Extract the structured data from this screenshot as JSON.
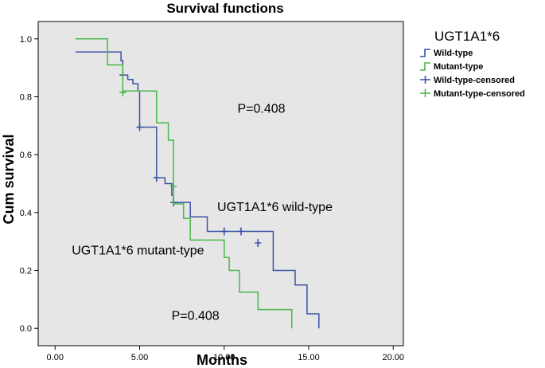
{
  "chart_data": {
    "type": "line",
    "title": "Survival functions",
    "xlabel": "Months",
    "ylabel": "Cum survival",
    "xlim": [
      -1,
      20.6
    ],
    "ylim": [
      -0.06,
      1.06
    ],
    "x_ticks": [
      0,
      5,
      10,
      15,
      20
    ],
    "x_tick_labels": [
      "0.00",
      "5.00",
      "10.00",
      "15.00",
      "20.00"
    ],
    "y_ticks": [
      0,
      0.2,
      0.4,
      0.6,
      0.8,
      1.0
    ],
    "y_tick_labels": [
      "0.0",
      "0.2",
      "0.4",
      "0.6",
      "0.8",
      "1.0"
    ],
    "legend": {
      "title": "UGT1A1*6",
      "placement": "right",
      "entries": [
        {
          "label": "Wild-type",
          "kind": "step",
          "color": "#3a53a4"
        },
        {
          "label": "Mutant-type",
          "kind": "step",
          "color": "#49b84b"
        },
        {
          "label": "Wild-type-censored",
          "kind": "censor",
          "color": "#3a53a4"
        },
        {
          "label": "Mutant-type-censored",
          "kind": "censor",
          "color": "#49b84b"
        }
      ]
    },
    "series": [
      {
        "name": "Wild-type",
        "color": "#3a53a4",
        "steps": [
          [
            1.2,
            0.955
          ],
          [
            3.9,
            0.955
          ],
          [
            3.9,
            0.925
          ],
          [
            4.0,
            0.925
          ],
          [
            4.0,
            0.875
          ],
          [
            4.3,
            0.875
          ],
          [
            4.3,
            0.86
          ],
          [
            4.6,
            0.86
          ],
          [
            4.6,
            0.845
          ],
          [
            4.9,
            0.845
          ],
          [
            4.9,
            0.82
          ],
          [
            5.0,
            0.82
          ],
          [
            5.0,
            0.695
          ],
          [
            6.0,
            0.695
          ],
          [
            6.0,
            0.52
          ],
          [
            6.5,
            0.52
          ],
          [
            6.5,
            0.5
          ],
          [
            6.9,
            0.5
          ],
          [
            6.9,
            0.46
          ],
          [
            7.0,
            0.46
          ],
          [
            7.0,
            0.435
          ],
          [
            8.0,
            0.435
          ],
          [
            8.0,
            0.385
          ],
          [
            9.0,
            0.385
          ],
          [
            9.0,
            0.335
          ],
          [
            12.9,
            0.335
          ],
          [
            12.9,
            0.2
          ],
          [
            14.2,
            0.2
          ],
          [
            14.2,
            0.15
          ],
          [
            14.9,
            0.15
          ],
          [
            14.9,
            0.05
          ],
          [
            15.6,
            0.05
          ],
          [
            15.6,
            0.0
          ]
        ],
        "censored": [
          [
            4.0,
            0.875
          ],
          [
            5.0,
            0.695
          ],
          [
            6.0,
            0.52
          ],
          [
            7.0,
            0.435
          ],
          [
            10.0,
            0.335
          ],
          [
            11.0,
            0.335
          ],
          [
            12.0,
            0.295
          ]
        ]
      },
      {
        "name": "Mutant-type",
        "color": "#49b84b",
        "steps": [
          [
            1.2,
            1.0
          ],
          [
            3.1,
            1.0
          ],
          [
            3.1,
            0.91
          ],
          [
            4.0,
            0.91
          ],
          [
            4.0,
            0.82
          ],
          [
            6.0,
            0.82
          ],
          [
            6.0,
            0.71
          ],
          [
            6.7,
            0.71
          ],
          [
            6.7,
            0.65
          ],
          [
            7.0,
            0.65
          ],
          [
            7.0,
            0.43
          ],
          [
            7.6,
            0.43
          ],
          [
            7.6,
            0.38
          ],
          [
            8.0,
            0.38
          ],
          [
            8.0,
            0.305
          ],
          [
            10.0,
            0.305
          ],
          [
            10.0,
            0.245
          ],
          [
            10.3,
            0.245
          ],
          [
            10.3,
            0.2
          ],
          [
            10.9,
            0.2
          ],
          [
            10.9,
            0.125
          ],
          [
            12.0,
            0.125
          ],
          [
            12.0,
            0.065
          ],
          [
            14.0,
            0.065
          ],
          [
            14.0,
            0.0
          ]
        ],
        "censored": [
          [
            4.0,
            0.815
          ],
          [
            7.0,
            0.49
          ]
        ]
      }
    ],
    "annotations": [
      {
        "text": "P=0.408",
        "x": 12.2,
        "y": 0.745
      },
      {
        "text": "UGT1A1*6 wild-type",
        "x": 13.0,
        "y": 0.405
      },
      {
        "text": "UGT1A1*6 mutant-type",
        "x": 4.9,
        "y": 0.255
      },
      {
        "text": "P=0.408",
        "x": 8.3,
        "y": 0.03
      }
    ]
  }
}
